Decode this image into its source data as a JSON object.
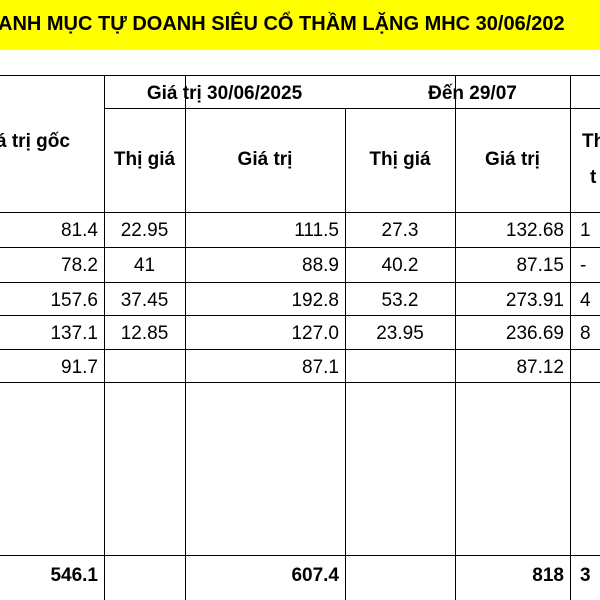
{
  "title": "ANH MỤC TỰ DOANH SIÊU CỔ THẦM LẶNG MHC 30/06/202",
  "table": {
    "header_groups": [
      "Giá trị 30/06/2025",
      "Đến 29/07"
    ],
    "columns": [
      "á trị gốc",
      "Thị giá",
      "Giá trị",
      "Thị giá",
      "Giá trị",
      "Th"
    ],
    "last_column_second_line": "t",
    "rows": [
      [
        "81.4",
        "22.95",
        "111.5",
        "27.3",
        "132.68",
        "1"
      ],
      [
        "78.2",
        "41",
        "88.9",
        "40.2",
        "87.15",
        "-"
      ],
      [
        "157.6",
        "37.45",
        "192.8",
        "53.2",
        "273.91",
        "4"
      ],
      [
        "137.1",
        "12.85",
        "127.0",
        "23.95",
        "236.69",
        "8"
      ],
      [
        "91.7",
        null,
        "87.1",
        null,
        "87.12",
        null
      ]
    ],
    "totals": [
      "546.1",
      null,
      "607.4",
      null,
      "818",
      "3"
    ]
  }
}
